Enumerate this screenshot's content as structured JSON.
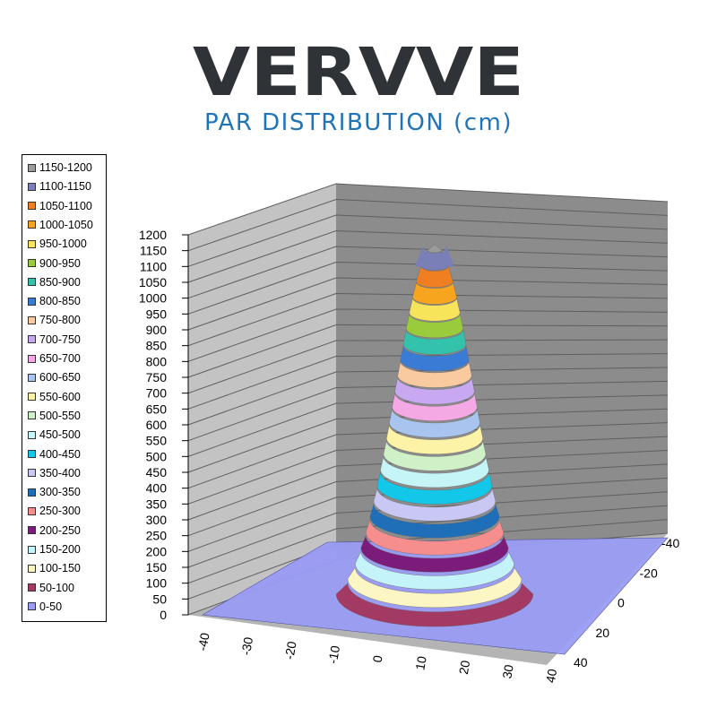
{
  "header": {
    "logo_text": "VERVVE",
    "subtitle": "PAR DISTRIBUTION (cm)"
  },
  "colors": {
    "logo": "#2f3237",
    "subtitle": "#1f74b8",
    "back_wall": "#8c8c8c",
    "side_wall": "#c3c3c3",
    "floor": "#b4b4b4",
    "grid_line": "#5f5f5f"
  },
  "chart_data": {
    "type": "surface-3d",
    "title": "PAR DISTRIBUTION (cm)",
    "z_range": [
      0,
      1200
    ],
    "z_step": 50,
    "x_range": [
      -40,
      40
    ],
    "y_range": [
      -40,
      40
    ],
    "z_ticks": [
      "1200",
      "1150",
      "1100",
      "1050",
      "1000",
      "950",
      "900",
      "850",
      "800",
      "750",
      "700",
      "650",
      "600",
      "550",
      "500",
      "450",
      "400",
      "350",
      "300",
      "250",
      "200",
      "150",
      "100",
      "50",
      "0"
    ],
    "x_ticks": [
      "-40",
      "-30",
      "-20",
      "-10",
      "0",
      "10",
      "20",
      "30",
      "40"
    ],
    "y_ticks": [
      "-40",
      "-20",
      "0",
      "20",
      "40"
    ],
    "peak": {
      "x": 0,
      "y": 0,
      "value": 1170
    },
    "falloff_radius_cm": 15,
    "legend": [
      {
        "label": "1150-1200",
        "color": "#9a9a9a"
      },
      {
        "label": "1100-1150",
        "color": "#7b7fb8"
      },
      {
        "label": "1050-1100",
        "color": "#f07f22"
      },
      {
        "label": "1000-1050",
        "color": "#f7a41e"
      },
      {
        "label": "950-1000",
        "color": "#f8e45a"
      },
      {
        "label": "900-950",
        "color": "#9acb3c"
      },
      {
        "label": "850-900",
        "color": "#33c3ad"
      },
      {
        "label": "800-850",
        "color": "#3a7bd5"
      },
      {
        "label": "750-800",
        "color": "#f9c9a0"
      },
      {
        "label": "700-750",
        "color": "#c8a8f0"
      },
      {
        "label": "650-700",
        "color": "#f4a8e4"
      },
      {
        "label": "600-650",
        "color": "#a9c5ef"
      },
      {
        "label": "550-600",
        "color": "#fdf3a6"
      },
      {
        "label": "500-550",
        "color": "#d0f0c8"
      },
      {
        "label": "450-500",
        "color": "#c6f5f8"
      },
      {
        "label": "400-450",
        "color": "#12c7e8"
      },
      {
        "label": "350-400",
        "color": "#c9c8f4"
      },
      {
        "label": "300-350",
        "color": "#1f6fb8"
      },
      {
        "label": "250-300",
        "color": "#f78e8e"
      },
      {
        "label": "200-250",
        "color": "#7b1c7a"
      },
      {
        "label": "150-200",
        "color": "#c5f3fa"
      },
      {
        "label": "100-150",
        "color": "#fbf6c4"
      },
      {
        "label": "50-100",
        "color": "#a23a63"
      },
      {
        "label": "0-50",
        "color": "#9a9cf5"
      }
    ]
  }
}
